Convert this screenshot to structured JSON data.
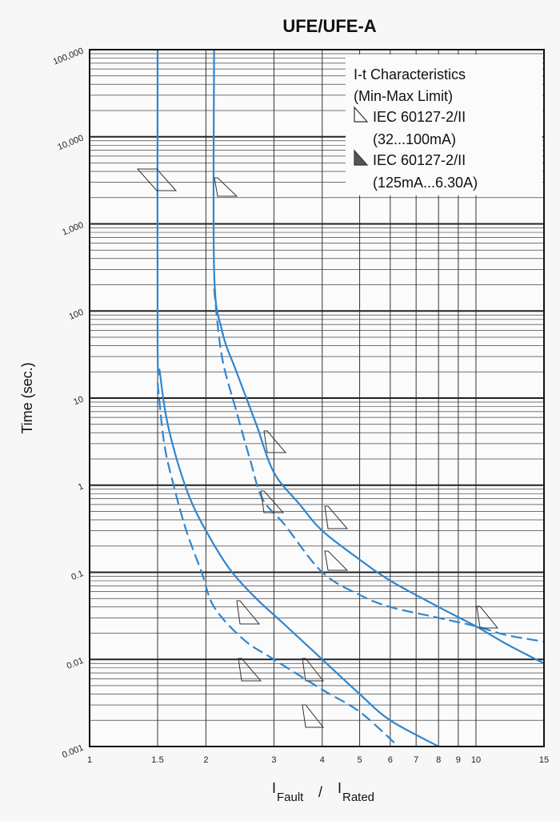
{
  "chart_data": {
    "type": "line",
    "title": "UFE/UFE-A",
    "ylabel": "Time (sec.)",
    "xlabel": {
      "prefix": "I",
      "numerator_sub": "Fault",
      "slash": "/",
      "denominator_prefix": "I",
      "denominator_sub": "Rated"
    },
    "x_scale": "log",
    "y_scale": "log",
    "xlim": [
      1,
      15
    ],
    "ylim": [
      0.001,
      100000
    ],
    "grid": true,
    "x_ticks": [
      {
        "value": 1,
        "label": "1"
      },
      {
        "value": 1.5,
        "label": "1.5"
      },
      {
        "value": 2,
        "label": "2"
      },
      {
        "value": 3,
        "label": "3"
      },
      {
        "value": 4,
        "label": "4"
      },
      {
        "value": 5,
        "label": "5"
      },
      {
        "value": 6,
        "label": "6"
      },
      {
        "value": 7,
        "label": "7"
      },
      {
        "value": 8,
        "label": "8"
      },
      {
        "value": 9,
        "label": "9"
      },
      {
        "value": 10,
        "label": "10"
      },
      {
        "value": 15,
        "label": "15"
      }
    ],
    "y_ticks": [
      {
        "value": 100000,
        "label": "100,000"
      },
      {
        "value": 10000,
        "label": "10,000"
      },
      {
        "value": 1000,
        "label": "1,000"
      },
      {
        "value": 100,
        "label": "100"
      },
      {
        "value": 10,
        "label": "10"
      },
      {
        "value": 1,
        "label": "1"
      },
      {
        "value": 0.1,
        "label": "0.1"
      },
      {
        "value": 0.01,
        "label": "0.01"
      },
      {
        "value": 0.001,
        "label": "0.001"
      }
    ],
    "legend": {
      "placement": "top-right",
      "title_lines": [
        "I-t Characteristics",
        "(Min-Max Limit)"
      ],
      "entries": [
        {
          "marker": "open-triangle",
          "label": "IEC 60127-2/II",
          "range": "(32...100mA)"
        },
        {
          "marker": "filled-triangle",
          "label": "IEC 60127-2/II",
          "range": "(125mA...6.30A)"
        }
      ]
    },
    "series": [
      {
        "style": "solid",
        "color": "#2f86d0",
        "points": [
          [
            1.5,
            100000
          ],
          [
            1.5,
            40
          ],
          [
            1.52,
            20
          ],
          [
            1.58,
            6
          ],
          [
            1.68,
            2
          ],
          [
            1.82,
            0.7
          ],
          [
            2,
            0.3
          ],
          [
            2.3,
            0.11
          ],
          [
            2.7,
            0.05
          ],
          [
            3.2,
            0.025
          ],
          [
            4,
            0.01
          ],
          [
            5,
            0.004
          ],
          [
            6,
            0.002
          ],
          [
            8,
            0.001
          ]
        ]
      },
      {
        "style": "dashed",
        "color": "#2f86d0",
        "points": [
          [
            1.5,
            15
          ],
          [
            1.56,
            3
          ],
          [
            1.65,
            1
          ],
          [
            1.78,
            0.3
          ],
          [
            1.95,
            0.1
          ],
          [
            2.1,
            0.04
          ],
          [
            2.5,
            0.017
          ],
          [
            3,
            0.01
          ],
          [
            4,
            0.0045
          ],
          [
            5,
            0.0025
          ],
          [
            6.3,
            0.001
          ]
        ]
      },
      {
        "style": "solid",
        "color": "#2f86d0",
        "points": [
          [
            2.1,
            100000
          ],
          [
            2.1,
            300
          ],
          [
            2.2,
            60
          ],
          [
            2.4,
            20
          ],
          [
            2.7,
            5
          ],
          [
            3,
            1.4
          ],
          [
            3.5,
            0.6
          ],
          [
            4,
            0.3
          ],
          [
            5,
            0.14
          ],
          [
            6,
            0.08
          ],
          [
            8,
            0.04
          ],
          [
            10,
            0.024
          ],
          [
            12,
            0.015
          ],
          [
            15,
            0.009
          ]
        ]
      },
      {
        "style": "dashed",
        "color": "#2f86d0",
        "points": [
          [
            2.1,
            180
          ],
          [
            2.2,
            30
          ],
          [
            2.4,
            7
          ],
          [
            2.6,
            2
          ],
          [
            2.8,
            0.7
          ],
          [
            3.2,
            0.35
          ],
          [
            4,
            0.1
          ],
          [
            5,
            0.055
          ],
          [
            6,
            0.04
          ],
          [
            8,
            0.03
          ],
          [
            10,
            0.024
          ],
          [
            12,
            0.019
          ],
          [
            15,
            0.016
          ]
        ]
      }
    ]
  },
  "colors": {
    "curve": "#2f86d0",
    "grid_major": "#222222",
    "grid_minor": "#444444",
    "marker": "#333333",
    "marker_fill": "#555555"
  }
}
